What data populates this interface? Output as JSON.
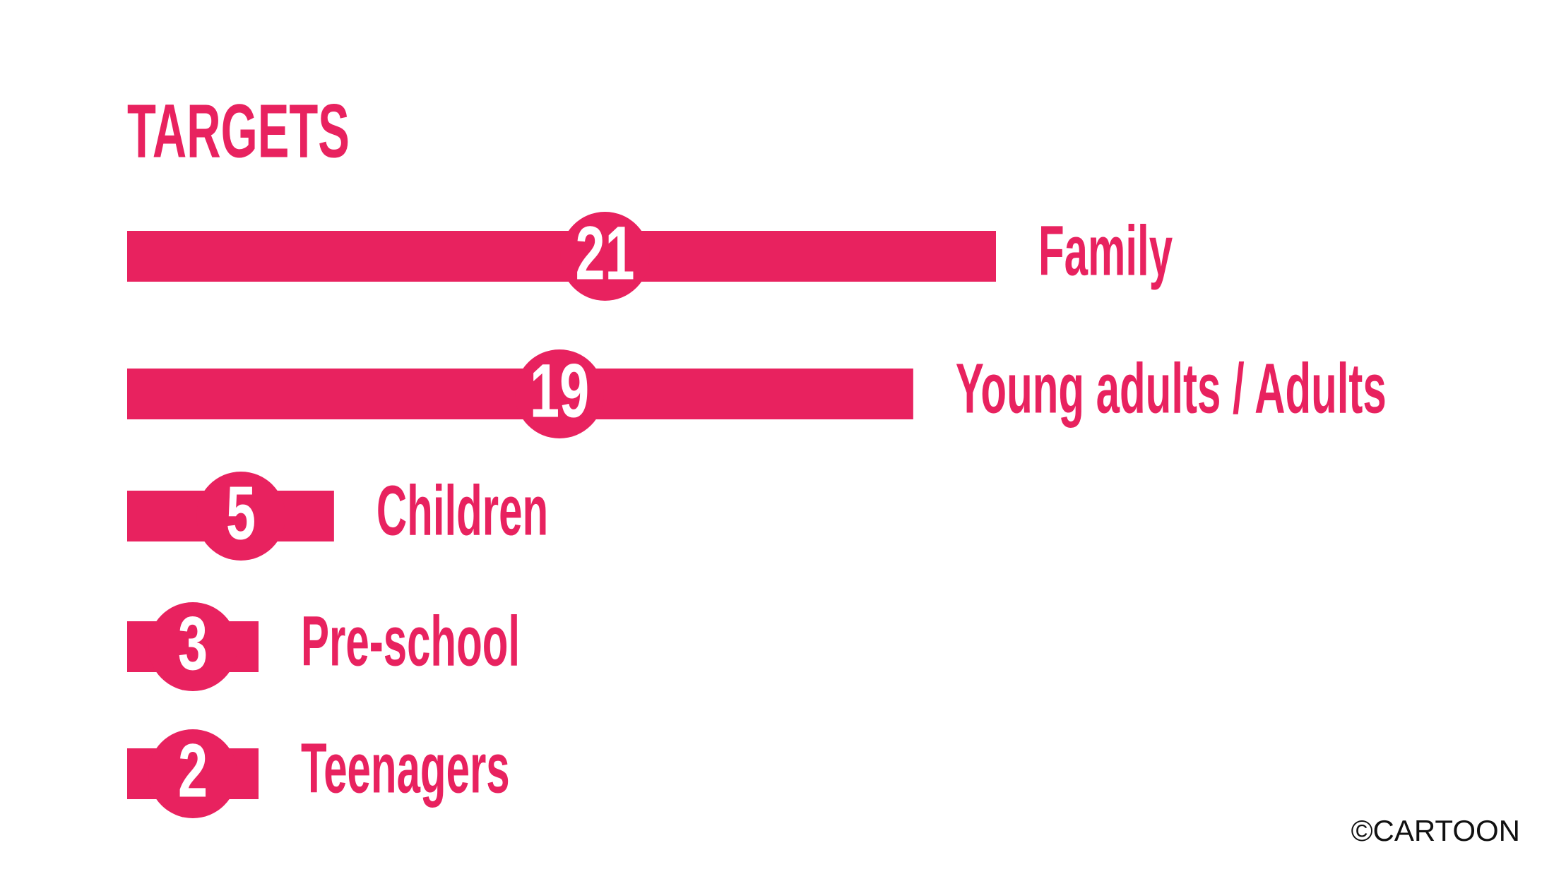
{
  "chart_data": {
    "type": "bar",
    "orientation": "horizontal",
    "title": "TARGETS",
    "categories": [
      "Family",
      "Young adults / Adults",
      "Children",
      "Pre-school",
      "Teenagers"
    ],
    "values": [
      21,
      19,
      5,
      3,
      2
    ],
    "color": "#e8225f",
    "footer": "©CARTOON"
  }
}
